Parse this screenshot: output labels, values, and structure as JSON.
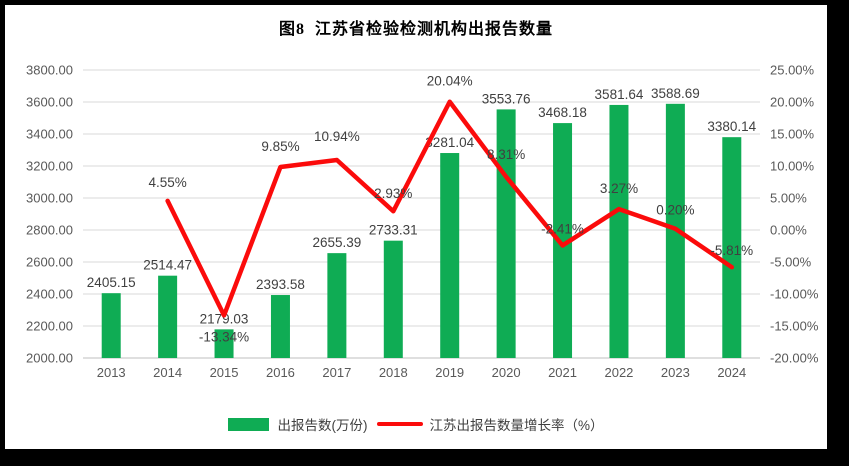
{
  "page": {
    "background": "#000000",
    "panel_background": "#ffffff"
  },
  "title": "图8  江苏省检验检测机构出报告数量",
  "chart_data": {
    "type": "bar+line",
    "categories": [
      "2013",
      "2014",
      "2015",
      "2016",
      "2017",
      "2018",
      "2019",
      "2020",
      "2021",
      "2022",
      "2023",
      "2024"
    ],
    "series": [
      {
        "name": "出报告数(万份)",
        "type": "bar",
        "axis": "left",
        "color": "#0FAC54",
        "values": [
          2405.15,
          2514.47,
          2179.03,
          2393.58,
          2655.39,
          2733.31,
          3281.04,
          3553.76,
          3468.18,
          3581.64,
          3588.69,
          3380.14
        ],
        "labels": [
          "2405.15",
          "2514.47",
          "2179.03",
          "2393.58",
          "2655.39",
          "2733.31",
          "3281.04",
          "3553.76",
          "3468.18",
          "3581.64",
          "3588.69",
          "3380.14"
        ]
      },
      {
        "name": "江苏出报告数量增长率（%）",
        "type": "line",
        "axis": "right",
        "color": "#FB0B0B",
        "values": [
          null,
          4.55,
          -13.34,
          9.85,
          10.94,
          2.93,
          20.04,
          8.31,
          -2.41,
          3.27,
          0.2,
          -5.81
        ],
        "labels": [
          null,
          "4.55%",
          "-13.34%",
          "9.85%",
          "10.94%",
          "2.93%",
          "20.04%",
          "8.31%",
          "-2.41%",
          "3.27%",
          "0.20%",
          "-5.81%"
        ]
      }
    ],
    "left_axis": {
      "min": 2000,
      "max": 3800,
      "step": 200,
      "tick_labels": [
        "2000.00",
        "2200.00",
        "2400.00",
        "2600.00",
        "2800.00",
        "3000.00",
        "3200.00",
        "3400.00",
        "3600.00",
        "3800.00"
      ]
    },
    "right_axis": {
      "min": -20,
      "max": 25,
      "step": 5,
      "tick_labels": [
        "-20.00%",
        "-15.00%",
        "-10.00%",
        "-5.00%",
        "0.00%",
        "5.00%",
        "10.00%",
        "15.00%",
        "20.00%",
        "25.00%"
      ]
    },
    "grid": true,
    "legend_position": "bottom"
  },
  "legend": {
    "items": [
      {
        "label": "出报告数(万份)",
        "color": "#0FAC54",
        "marker": "rect"
      },
      {
        "label": "江苏出报告数量增长率（%）",
        "color": "#FB0B0B",
        "marker": "line"
      }
    ]
  },
  "colors": {
    "bar": "#0FAC54",
    "line": "#FB0B0B",
    "grid": "#D9D9D9",
    "axis_line": "#BFBFBF",
    "tick_text": "#595959",
    "data_label": "#404040"
  }
}
